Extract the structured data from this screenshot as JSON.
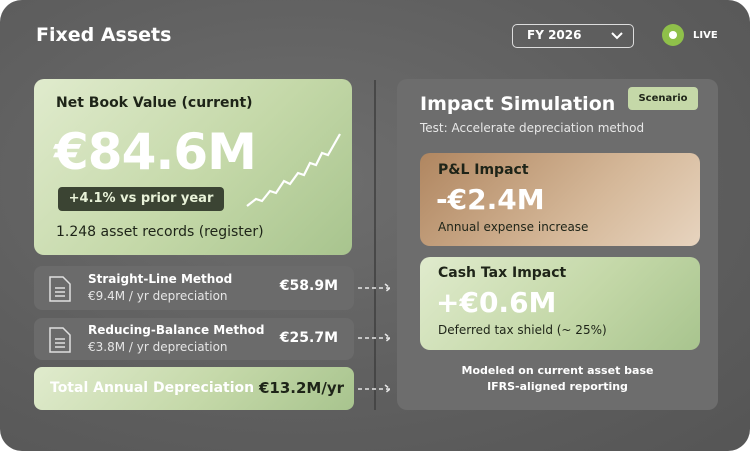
{
  "header": {
    "title": "Fixed Assets",
    "period": "FY 2026",
    "status": "LIVE"
  },
  "net_book_value": {
    "label": "Net Book Value (current)",
    "value": "€84.6M",
    "change": "+4.1% vs prior year",
    "records": "1.248 asset records (register)"
  },
  "methods": [
    {
      "name": "Straight-Line Method",
      "detail": "€9.4M / yr depreciation",
      "value": "€58.9M"
    },
    {
      "name": "Reducing-Balance Method",
      "detail": "€3.8M / yr depreciation",
      "value": "€25.7M"
    }
  ],
  "total": {
    "label": "Total Annual Depreciation",
    "value": "€13.2M/yr"
  },
  "simulation": {
    "title": "Impact Simulation",
    "badge": "Scenario",
    "subtitle": "Test: Accelerate depreciation method",
    "cards": [
      {
        "title": "P&L Impact",
        "value": "-€2.4M",
        "note": "Annual expense increase"
      },
      {
        "title": "Cash Tax Impact",
        "value": "+€0.6M",
        "note": "Deferred tax shield (~ 25%)"
      }
    ],
    "footer": [
      "Modeled on current asset base",
      "IFRS-aligned reporting"
    ]
  }
}
